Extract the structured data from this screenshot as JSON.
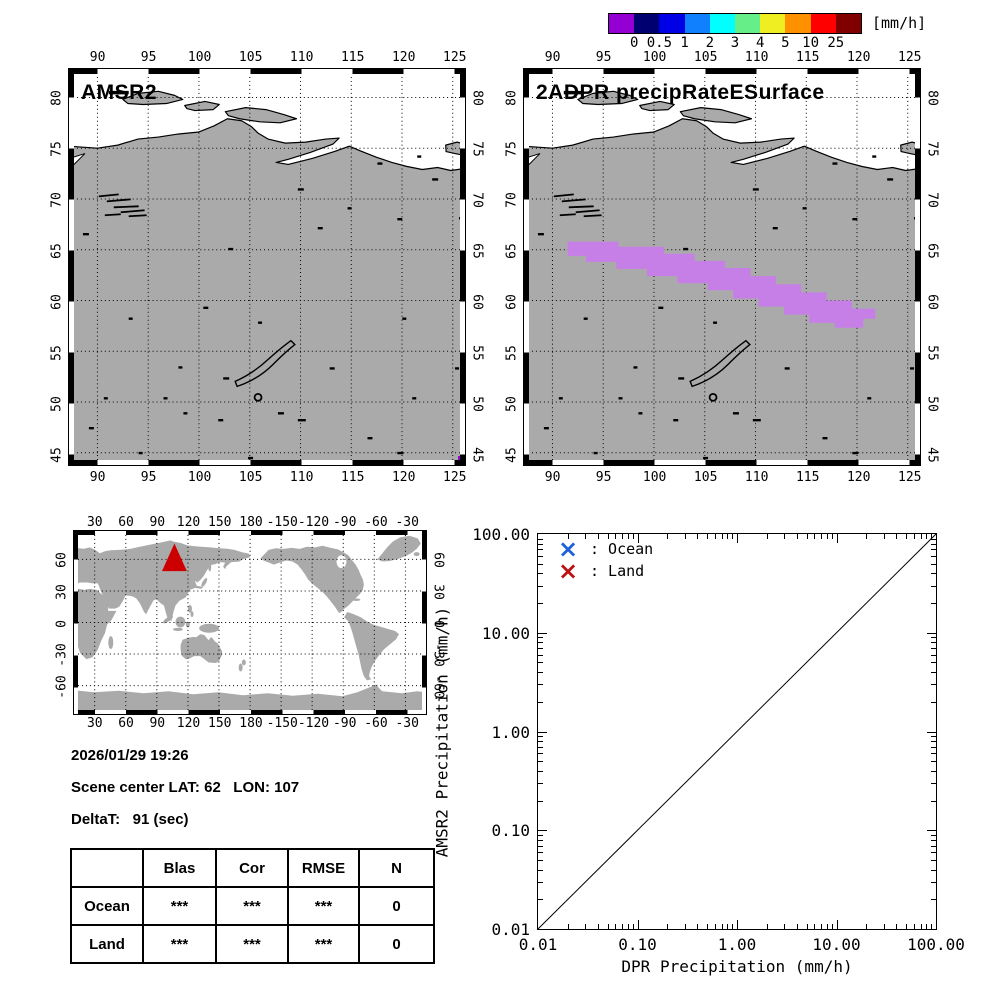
{
  "colorbar": {
    "units_label": "[mm/h]",
    "tick_labels": [
      "0",
      "0.5",
      "1",
      "2",
      "3",
      "4",
      "5",
      "10",
      "25"
    ],
    "colors": [
      "#9400d3",
      "#000070",
      "#0000e6",
      "#1080ff",
      "#00ffff",
      "#66ee88",
      "#eeee22",
      "#ff9100",
      "#ff0000",
      "#800000"
    ]
  },
  "maps": {
    "amsr2": {
      "title": "AMSR2"
    },
    "dpr": {
      "title": "2ADPR precipRateESurface"
    },
    "lon_tick_labels": [
      "90",
      "95",
      "100",
      "105",
      "110",
      "115",
      "120",
      "125"
    ],
    "lat_tick_labels": [
      "80",
      "75",
      "70",
      "65",
      "60",
      "55",
      "50",
      "45"
    ],
    "land_color": "#aaaaaa",
    "swath_color": "#c77fe8",
    "amsr2_pixel_color": "#9400d3"
  },
  "world_map": {
    "lon_tick_labels": [
      "30",
      "60",
      "90",
      "120",
      "150",
      "180",
      "-150",
      "-120",
      "-90",
      "-60",
      "-30"
    ],
    "lat_tick_labels": [
      "60",
      "30",
      "0",
      "-30",
      "-60"
    ],
    "marker": {
      "shape": "triangle",
      "color": "#cc0000",
      "lat": 62,
      "lon": 107
    }
  },
  "info": {
    "datetime": "2026/01/29 19:26",
    "scene_center": "Scene center LAT: 62   LON: 107",
    "delta_t": "DeltaT:   91 (sec)"
  },
  "stats_table": {
    "columns": [
      "",
      "Blas",
      "Cor",
      "RMSE",
      "N"
    ],
    "rows": [
      [
        "Ocean",
        "***",
        "***",
        "***",
        "0"
      ],
      [
        "Land",
        "***",
        "***",
        "***",
        "0"
      ]
    ]
  },
  "chart_data": {
    "type": "scatter",
    "title": "",
    "xlabel": "DPR Precipitation (mm/h)",
    "ylabel": "AMSR2 Precipitation (mm/h)",
    "xscale": "log",
    "yscale": "log",
    "xlim": [
      0.01,
      100
    ],
    "ylim": [
      0.01,
      100
    ],
    "x_tick_labels": [
      "0.01",
      "0.10",
      "1.00",
      "10.00",
      "100.00"
    ],
    "y_tick_labels": [
      "100.00",
      "10.00",
      "1.00",
      "0.10",
      "0.01"
    ],
    "grid": false,
    "legend_position": "top-left-inside",
    "legend": [
      {
        "label": ": Ocean",
        "marker": "x",
        "color": "#2060dd"
      },
      {
        "label": ": Land",
        "marker": "x",
        "color": "#bb1111"
      }
    ],
    "series": [
      {
        "name": "Ocean",
        "points": []
      },
      {
        "name": "Land",
        "points": []
      }
    ],
    "reference_line": {
      "type": "identity",
      "from": [
        0.01,
        0.01
      ],
      "to": [
        100,
        100
      ]
    }
  }
}
